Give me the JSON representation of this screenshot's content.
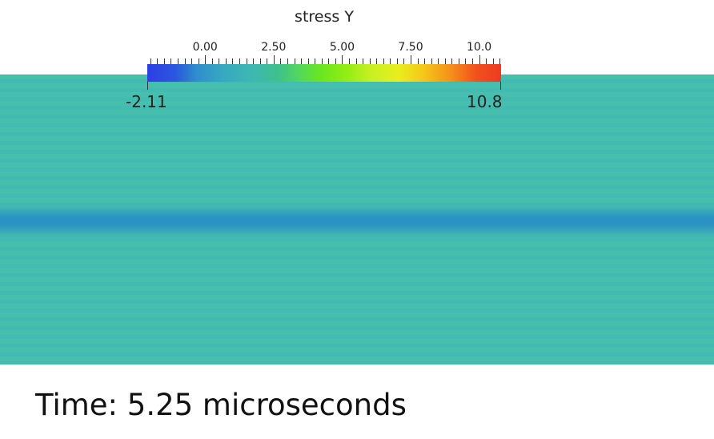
{
  "colorbar": {
    "title": "stress Y",
    "min": -2.11,
    "max": 10.8,
    "min_label": "-2.11",
    "max_label": "10.8",
    "tick_labels": [
      "0.00",
      "2.50",
      "5.00",
      "7.50",
      "10.0"
    ],
    "tick_values": [
      0.0,
      2.5,
      5.0,
      7.5,
      10.0
    ],
    "colors": [
      "#2c3fe2",
      "#37aac0",
      "#3fc08c",
      "#6ae620",
      "#e9ee1e",
      "#f58e1a",
      "#ee3b21"
    ]
  },
  "field": {
    "background_color": "#46bfae",
    "band_color": "#2b90c4"
  },
  "footer": {
    "time_text": "Time: 5.25 microseconds"
  }
}
